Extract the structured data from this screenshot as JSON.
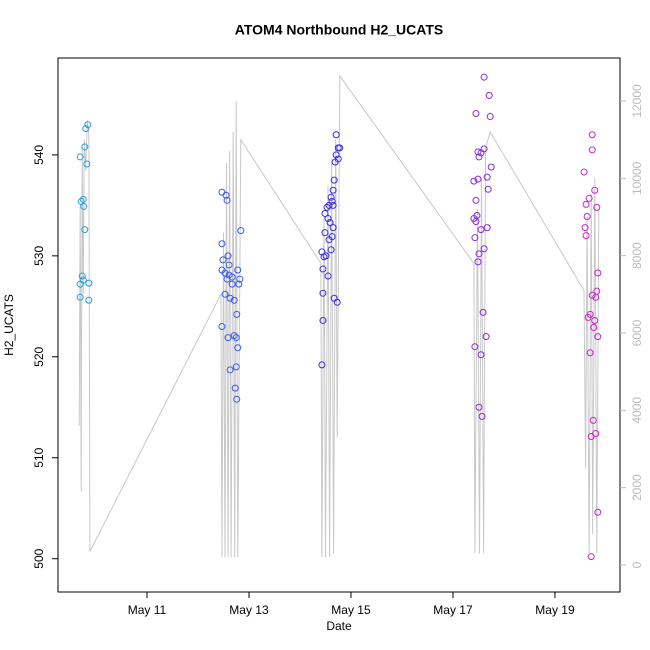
{
  "chart_data": {
    "type": "scatter",
    "title": "ATOM4 Northbound H2_UCATS",
    "x_label": "Date",
    "y_label": "H2_UCATS",
    "xlim": [
      9.255,
      20.275
    ],
    "xticks": [
      {
        "value": 11,
        "label": "May 11"
      },
      {
        "value": 13,
        "label": "May 13"
      },
      {
        "value": 15,
        "label": "May 15"
      },
      {
        "value": 17,
        "label": "May 17"
      },
      {
        "value": 19,
        "label": "May 19"
      }
    ],
    "ylim": [
      496.7,
      549.6
    ],
    "yticks": [
      500,
      510,
      520,
      530,
      540
    ],
    "y2lim": [
      -698,
      13112
    ],
    "y2ticks": [
      0,
      2000,
      4000,
      6000,
      8000,
      10000,
      12000
    ],
    "groups": [
      {
        "color": "#2aa0e0",
        "x": [
          9.69,
          9.78,
          9.8,
          9.84,
          9.75,
          9.71,
          9.76,
          9.82,
          9.78,
          9.73,
          9.69,
          9.75,
          9.86,
          9.69,
          9.86
        ],
        "values": [
          539.8,
          540.8,
          542.6,
          543.0,
          535.6,
          535.4,
          534.9,
          539.1,
          532.6,
          528.0,
          527.2,
          527.6,
          527.3,
          525.9,
          525.6
        ]
      },
      {
        "color": "#3c5ae8",
        "x": [
          12.47,
          12.55,
          12.57,
          12.47,
          12.49,
          12.59,
          12.47,
          12.53,
          12.61,
          12.67,
          12.57,
          12.78,
          12.82,
          12.67,
          12.8,
          12.53,
          12.63,
          12.71,
          12.76,
          12.47,
          12.59,
          12.71,
          12.75,
          12.78,
          12.63,
          12.75,
          12.73,
          12.76,
          12.84,
          12.61
        ],
        "values": [
          536.3,
          536.0,
          535.5,
          531.2,
          529.6,
          530.0,
          528.6,
          528.3,
          528.1,
          527.9,
          527.7,
          528.6,
          527.7,
          527.2,
          527.2,
          526.2,
          525.8,
          525.6,
          524.2,
          523.0,
          521.9,
          522.1,
          521.9,
          520.9,
          518.7,
          519.0,
          516.9,
          515.8,
          532.5,
          529.1
        ]
      },
      {
        "color": "#3a2ee0",
        "x": [
          14.71,
          14.75,
          14.78,
          14.71,
          14.75,
          14.69,
          14.67,
          14.65,
          14.61,
          14.63,
          14.57,
          14.65,
          14.53,
          14.49,
          14.55,
          14.59,
          14.65,
          14.49,
          14.63,
          14.57,
          14.61,
          14.43,
          14.51,
          14.47,
          14.55,
          14.45,
          14.45,
          14.67,
          14.73,
          14.45,
          14.43
        ],
        "values": [
          542.0,
          540.7,
          540.7,
          540.0,
          539.6,
          539.3,
          537.5,
          536.5,
          535.8,
          535.4,
          535.0,
          535.0,
          534.8,
          534.2,
          533.7,
          533.3,
          532.8,
          532.3,
          531.9,
          531.6,
          530.6,
          530.4,
          530.0,
          529.9,
          528.0,
          528.7,
          526.3,
          525.8,
          525.4,
          523.6,
          519.2
        ]
      },
      {
        "color": "#8a2ae0",
        "x": [
          17.61,
          17.71,
          17.45,
          17.73,
          17.61,
          17.49,
          17.55,
          17.51,
          17.75,
          17.67,
          17.49,
          17.41,
          17.69,
          17.45,
          17.41,
          17.47,
          17.45,
          17.67,
          17.55,
          17.43,
          17.61,
          17.51,
          17.49,
          17.59,
          17.65,
          17.43,
          17.55,
          17.51,
          17.57
        ],
        "values": [
          547.7,
          545.9,
          544.1,
          543.8,
          540.6,
          540.3,
          540.2,
          539.8,
          538.8,
          537.8,
          537.6,
          537.4,
          536.6,
          535.5,
          533.7,
          534.0,
          533.4,
          532.8,
          532.6,
          531.8,
          530.7,
          530.2,
          529.4,
          524.4,
          522.0,
          521.0,
          520.2,
          515.0,
          514.1
        ]
      },
      {
        "color": "#d020d0",
        "x": [
          19.73,
          19.73,
          19.57,
          19.78,
          19.67,
          19.61,
          19.82,
          19.63,
          19.59,
          19.61,
          19.84,
          19.82,
          19.73,
          19.8,
          19.69,
          19.65,
          19.78,
          19.76,
          19.84,
          19.69,
          19.75,
          19.8,
          19.71,
          19.84,
          19.71
        ],
        "values": [
          542.0,
          540.5,
          538.3,
          536.5,
          535.7,
          535.1,
          534.8,
          533.9,
          532.8,
          532.0,
          528.3,
          526.5,
          526.1,
          525.9,
          524.2,
          523.9,
          523.6,
          522.9,
          522.0,
          520.4,
          513.7,
          512.4,
          512.1,
          504.6,
          500.2
        ]
      }
    ],
    "line": {
      "color": "#c8c8c8",
      "axis": "y2",
      "x": [
        9.67,
        9.69,
        9.71,
        9.73,
        9.75,
        9.77,
        9.8,
        9.83,
        9.86,
        9.88,
        12.45,
        12.47,
        12.5,
        12.53,
        12.56,
        12.59,
        12.62,
        12.65,
        12.69,
        12.72,
        12.75,
        12.78,
        12.84,
        14.41,
        14.43,
        14.47,
        14.5,
        14.55,
        14.58,
        14.62,
        14.66,
        14.7,
        14.73,
        14.78,
        17.41,
        17.43,
        17.48,
        17.52,
        17.56,
        17.6,
        17.64,
        17.73,
        19.57,
        19.6,
        19.63,
        19.67,
        19.71,
        19.74,
        19.78,
        19.82,
        19.86
      ],
      "values": [
        3600,
        9300,
        1900,
        10800,
        7000,
        11000,
        10200,
        11500,
        11100,
        350,
        7000,
        200,
        8600,
        200,
        10400,
        200,
        10700,
        200,
        11200,
        200,
        12000,
        200,
        11000,
        7800,
        200,
        9000,
        200,
        9800,
        200,
        10500,
        300,
        11000,
        3300,
        12650,
        7800,
        300,
        9200,
        300,
        10000,
        300,
        10800,
        11200,
        7100,
        2500,
        9000,
        300,
        9600,
        800,
        10000,
        300,
        9200
      ]
    }
  }
}
